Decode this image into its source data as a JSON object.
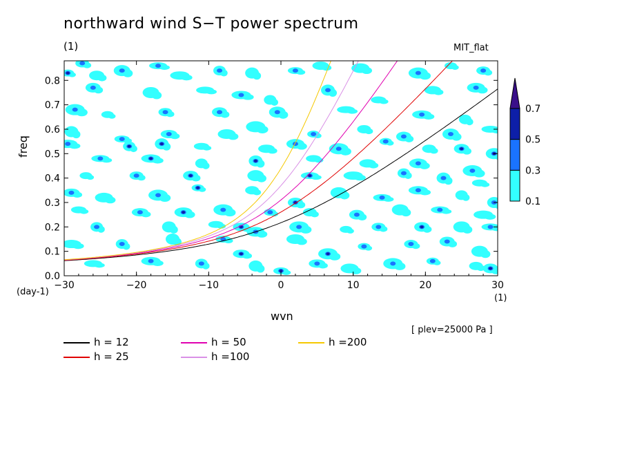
{
  "chart_data": {
    "type": "heatmap",
    "title": "northward wind S−T power spectrum",
    "title_unit": "(1)",
    "model": "MIT_flat",
    "xlabel": "wvn",
    "x_unit": "(1)",
    "ylabel": "freq",
    "y_unit": "(day-1)",
    "xlim": [
      -30,
      30
    ],
    "ylim": [
      0,
      0.88
    ],
    "x_ticks": [
      "−30",
      "−20",
      "−10",
      "0",
      "10",
      "20",
      "30"
    ],
    "y_ticks": [
      "0.0",
      "0.1",
      "0.2",
      "0.3",
      "0.4",
      "0.5",
      "0.6",
      "0.7",
      "0.8"
    ],
    "colorbar": {
      "levels": [
        "0.1",
        "0.3",
        "0.5",
        "0.7"
      ],
      "colors": [
        "#33ffff",
        "#1a73ff",
        "#0d1fa8",
        "#3a108a"
      ],
      "extend": "max"
    },
    "note": "[ plev=25000 Pa ]",
    "dispersion_curves": [
      {
        "name": "h = 12",
        "h": 12,
        "color": "#000000"
      },
      {
        "name": "h = 25",
        "h": 25,
        "color": "#e00000"
      },
      {
        "name": "h = 50",
        "h": 50,
        "color": "#e000b0"
      },
      {
        "name": "h =100",
        "h": 100,
        "color": "#d990e6"
      },
      {
        "name": "h =200",
        "h": 200,
        "color": "#f5c800"
      }
    ],
    "blobs": [
      [
        -29.5,
        0.83,
        0.55,
        2
      ],
      [
        -27.5,
        0.87,
        0.35,
        1
      ],
      [
        -25.5,
        0.82,
        0.2,
        0
      ],
      [
        -22,
        0.84,
        0.25,
        1
      ],
      [
        -17,
        0.86,
        0.25,
        1
      ],
      [
        -14,
        0.82,
        0.2,
        0
      ],
      [
        -8.5,
        0.84,
        0.3,
        1
      ],
      [
        -4,
        0.83,
        0.2,
        0
      ],
      [
        2,
        0.84,
        0.25,
        1
      ],
      [
        5.5,
        0.86,
        0.2,
        0
      ],
      [
        11,
        0.85,
        0.2,
        0
      ],
      [
        19,
        0.83,
        0.35,
        1
      ],
      [
        23.5,
        0.86,
        0.2,
        0
      ],
      [
        28,
        0.84,
        0.3,
        1
      ],
      [
        -26,
        0.77,
        0.3,
        1
      ],
      [
        -18,
        0.75,
        0.2,
        0
      ],
      [
        -10.5,
        0.76,
        0.2,
        0
      ],
      [
        -5.5,
        0.74,
        0.3,
        1
      ],
      [
        -1.5,
        0.72,
        0.2,
        0
      ],
      [
        6.5,
        0.76,
        0.25,
        1
      ],
      [
        13.5,
        0.72,
        0.2,
        0
      ],
      [
        21,
        0.76,
        0.2,
        0
      ],
      [
        27,
        0.77,
        0.25,
        1
      ],
      [
        -28.5,
        0.68,
        0.3,
        1
      ],
      [
        -24,
        0.66,
        0.2,
        0
      ],
      [
        -16,
        0.67,
        0.3,
        1
      ],
      [
        -8.5,
        0.67,
        0.3,
        1
      ],
      [
        -0.5,
        0.67,
        0.35,
        1
      ],
      [
        9,
        0.68,
        0.2,
        0
      ],
      [
        19.5,
        0.66,
        0.3,
        1
      ],
      [
        25.5,
        0.64,
        0.2,
        0
      ],
      [
        -29,
        0.59,
        0.2,
        0
      ],
      [
        -22,
        0.56,
        0.3,
        1
      ],
      [
        -15.5,
        0.58,
        0.25,
        1
      ],
      [
        -7.5,
        0.58,
        0.2,
        0
      ],
      [
        -3.5,
        0.61,
        0.2,
        0
      ],
      [
        4.5,
        0.58,
        0.3,
        1
      ],
      [
        11.5,
        0.6,
        0.2,
        0
      ],
      [
        17,
        0.57,
        0.25,
        1
      ],
      [
        23.5,
        0.58,
        0.3,
        1
      ],
      [
        29,
        0.6,
        0.2,
        0
      ],
      [
        -29.5,
        0.54,
        0.3,
        1
      ],
      [
        -21,
        0.53,
        0.55,
        2
      ],
      [
        -16.5,
        0.54,
        0.55,
        2
      ],
      [
        -11,
        0.53,
        0.2,
        0
      ],
      [
        -2,
        0.52,
        0.2,
        0
      ],
      [
        2,
        0.54,
        0.3,
        1
      ],
      [
        8,
        0.52,
        0.25,
        1
      ],
      [
        14.5,
        0.55,
        0.3,
        1
      ],
      [
        20.5,
        0.52,
        0.2,
        0
      ],
      [
        25,
        0.52,
        0.55,
        2
      ],
      [
        29.5,
        0.5,
        0.55,
        2
      ],
      [
        -25,
        0.48,
        0.3,
        1
      ],
      [
        -18,
        0.48,
        0.55,
        2
      ],
      [
        -11,
        0.46,
        0.2,
        0
      ],
      [
        -3.5,
        0.47,
        0.45,
        2
      ],
      [
        4.5,
        0.48,
        0.2,
        0
      ],
      [
        12,
        0.46,
        0.2,
        0
      ],
      [
        19,
        0.46,
        0.3,
        1
      ],
      [
        26.5,
        0.43,
        0.25,
        1
      ],
      [
        -27,
        0.41,
        0.2,
        0
      ],
      [
        -20,
        0.41,
        0.25,
        1
      ],
      [
        -12.5,
        0.41,
        0.55,
        2
      ],
      [
        -3.5,
        0.41,
        0.2,
        0
      ],
      [
        4,
        0.41,
        0.55,
        2
      ],
      [
        10,
        0.41,
        0.2,
        0
      ],
      [
        17,
        0.42,
        0.3,
        1
      ],
      [
        22.5,
        0.4,
        0.25,
        1
      ],
      [
        27.5,
        0.38,
        0.2,
        0
      ],
      [
        -29,
        0.34,
        0.3,
        1
      ],
      [
        -24.5,
        0.32,
        0.2,
        0
      ],
      [
        -17,
        0.33,
        0.3,
        1
      ],
      [
        -11.5,
        0.36,
        0.55,
        2
      ],
      [
        -4,
        0.35,
        0.2,
        0
      ],
      [
        2,
        0.3,
        0.55,
        2
      ],
      [
        8,
        0.34,
        0.2,
        0
      ],
      [
        14,
        0.32,
        0.3,
        1
      ],
      [
        19,
        0.35,
        0.25,
        1
      ],
      [
        25,
        0.33,
        0.2,
        0
      ],
      [
        29.5,
        0.3,
        0.3,
        1
      ],
      [
        -28,
        0.27,
        0.2,
        0
      ],
      [
        -19.5,
        0.26,
        0.3,
        1
      ],
      [
        -13.5,
        0.26,
        0.55,
        2
      ],
      [
        -8,
        0.27,
        0.3,
        1
      ],
      [
        -1.5,
        0.26,
        0.25,
        1
      ],
      [
        4,
        0.26,
        0.2,
        0
      ],
      [
        10.5,
        0.25,
        0.3,
        1
      ],
      [
        16.5,
        0.27,
        0.2,
        0
      ],
      [
        22,
        0.27,
        0.3,
        1
      ],
      [
        28,
        0.25,
        0.2,
        0
      ],
      [
        -25.5,
        0.2,
        0.3,
        1
      ],
      [
        -15.5,
        0.2,
        0.2,
        0
      ],
      [
        -9,
        0.21,
        0.2,
        0
      ],
      [
        -5.5,
        0.2,
        0.55,
        2
      ],
      [
        -3.5,
        0.18,
        0.3,
        1
      ],
      [
        2.5,
        0.2,
        0.3,
        1
      ],
      [
        9,
        0.19,
        0.2,
        0
      ],
      [
        13.5,
        0.2,
        0.3,
        1
      ],
      [
        19.5,
        0.2,
        0.55,
        2
      ],
      [
        25,
        0.2,
        0.2,
        0
      ],
      [
        29,
        0.2,
        0.3,
        1
      ],
      [
        -29,
        0.13,
        0.2,
        0
      ],
      [
        -22,
        0.13,
        0.3,
        1
      ],
      [
        -15,
        0.15,
        0.2,
        0
      ],
      [
        -8,
        0.15,
        0.3,
        1
      ],
      [
        -5.5,
        0.09,
        0.55,
        2
      ],
      [
        2,
        0.15,
        0.2,
        0
      ],
      [
        6.5,
        0.09,
        0.55,
        2
      ],
      [
        11.5,
        0.12,
        0.3,
        1
      ],
      [
        18,
        0.13,
        0.3,
        1
      ],
      [
        23,
        0.14,
        0.3,
        1
      ],
      [
        27.5,
        0.1,
        0.2,
        0
      ],
      [
        -26,
        0.05,
        0.2,
        0
      ],
      [
        -18,
        0.06,
        0.3,
        1
      ],
      [
        -11,
        0.05,
        0.3,
        1
      ],
      [
        -3.5,
        0.04,
        0.2,
        0
      ],
      [
        0,
        0.02,
        0.55,
        2
      ],
      [
        5,
        0.05,
        0.3,
        1
      ],
      [
        9.5,
        0.03,
        0.2,
        0
      ],
      [
        15.5,
        0.05,
        0.3,
        1
      ],
      [
        21,
        0.06,
        0.3,
        1
      ],
      [
        27,
        0.04,
        0.2,
        0
      ],
      [
        29,
        0.03,
        0.55,
        2
      ]
    ]
  }
}
